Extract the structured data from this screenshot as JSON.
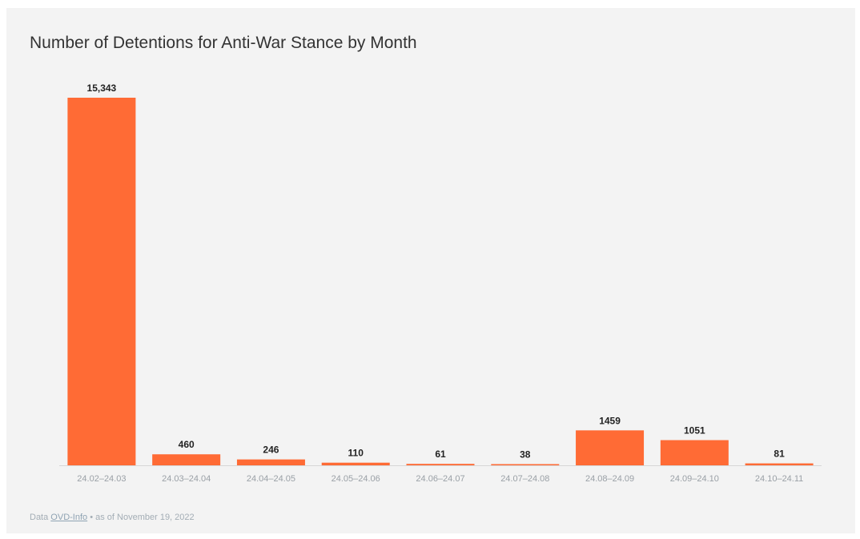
{
  "title": "Number of Detentions for Anti-War Stance by Month",
  "footer": {
    "prefix": "Data ",
    "source": "OVD-Info",
    "suffix": " • as of November 19, 2022"
  },
  "colors": {
    "bar": "#ff6b35",
    "background": "#f3f3f3",
    "axis": "#d6d6d6",
    "label": "#222222",
    "tick": "#9aa0a6"
  },
  "chart_data": {
    "type": "bar",
    "categories": [
      "24.02–24.03",
      "24.03–24.04",
      "24.04–24.05",
      "24.05–24.06",
      "24.06–24.07",
      "24.07–24.08",
      "24.08–24.09",
      "24.09–24.10",
      "24.10–24.11"
    ],
    "values": [
      15343,
      460,
      246,
      110,
      61,
      38,
      1459,
      1051,
      81
    ],
    "value_labels": [
      "15,343",
      "460",
      "246",
      "110",
      "61",
      "38",
      "1459",
      "1051",
      "81"
    ],
    "title": "Number of Detentions for Anti-War Stance by Month",
    "xlabel": "",
    "ylabel": "",
    "ylim": [
      0,
      15343
    ],
    "grid": false,
    "legend": "none"
  }
}
